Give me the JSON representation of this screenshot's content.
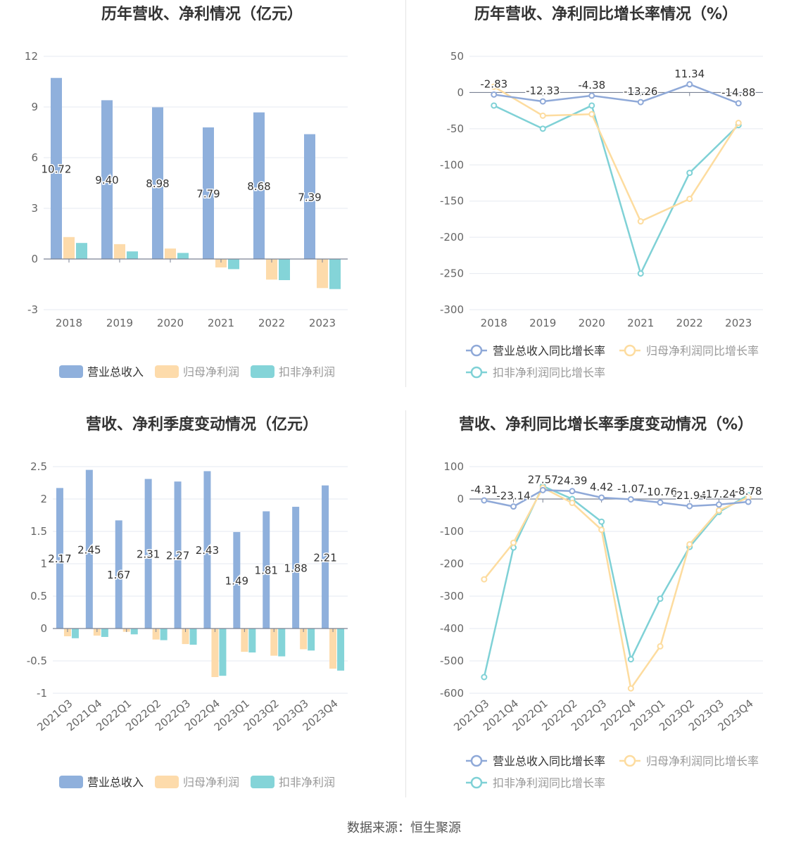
{
  "source": "数据来源：恒生聚源",
  "chart_data": [
    {
      "id": "annual-amount",
      "type": "bar",
      "title": "历年营收、净利情况（亿元）",
      "categories": [
        "2018",
        "2019",
        "2020",
        "2021",
        "2022",
        "2023"
      ],
      "ylim": [
        -3,
        12
      ],
      "yticks": [
        -3,
        0,
        3,
        6,
        9,
        12
      ],
      "series": [
        {
          "name": "营业总收入",
          "color": "#8fb0dc",
          "values": [
            10.72,
            9.4,
            8.98,
            7.79,
            8.68,
            7.39
          ],
          "labels": [
            "10.72",
            "9.40",
            "8.98",
            "7.79",
            "8.68",
            "7.39"
          ]
        },
        {
          "name": "归母净利润",
          "color": "#fddbab",
          "values": [
            1.3,
            0.88,
            0.62,
            -0.5,
            -1.22,
            -1.72
          ]
        },
        {
          "name": "扣非净利润",
          "color": "#84d4d8",
          "values": [
            0.95,
            0.45,
            0.36,
            -0.6,
            -1.25,
            -1.78
          ]
        }
      ],
      "legend": "bottom"
    },
    {
      "id": "annual-growth",
      "type": "line",
      "title": "历年营收、净利同比增长率情况（%）",
      "categories": [
        "2018",
        "2019",
        "2020",
        "2021",
        "2022",
        "2023"
      ],
      "ylim": [
        -300,
        50
      ],
      "yticks": [
        -300,
        -250,
        -200,
        -150,
        -100,
        -50,
        0,
        50
      ],
      "series": [
        {
          "name": "营业总收入同比增长率",
          "color": "#8fa9d8",
          "values": [
            -2.83,
            -12.33,
            -4.38,
            -13.26,
            11.34,
            -14.88
          ],
          "labels": [
            "-2.83",
            "-12.33",
            "-4.38",
            "-13.26",
            "11.34",
            "-14.88"
          ]
        },
        {
          "name": "归母净利润同比增长率",
          "color": "#fddc9f",
          "values": [
            8,
            -32,
            -30,
            -178,
            -147,
            -42
          ]
        },
        {
          "name": "扣非净利润同比增长率",
          "color": "#7fd1d6",
          "values": [
            -18,
            -50,
            -18,
            -250,
            -111,
            -45
          ]
        }
      ],
      "legend": "bottom"
    },
    {
      "id": "quarterly-amount",
      "type": "bar",
      "title": "营收、净利季度变动情况（亿元）",
      "categories": [
        "2021Q3",
        "2021Q4",
        "2022Q1",
        "2022Q2",
        "2022Q3",
        "2022Q4",
        "2023Q1",
        "2023Q2",
        "2023Q3",
        "2023Q4"
      ],
      "ylim": [
        -1,
        2.5
      ],
      "yticks": [
        -1,
        -0.5,
        0,
        0.5,
        1,
        1.5,
        2,
        2.5
      ],
      "series": [
        {
          "name": "营业总收入",
          "color": "#8fb0dc",
          "values": [
            2.17,
            2.45,
            1.67,
            2.31,
            2.27,
            2.43,
            1.49,
            1.81,
            1.88,
            2.21
          ],
          "labels": [
            "2.17",
            "2.45",
            "1.67",
            "2.31",
            "2.27",
            "2.43",
            "1.49",
            "1.81",
            "1.88",
            "2.21"
          ]
        },
        {
          "name": "归母净利润",
          "color": "#fddbab",
          "values": [
            -0.12,
            -0.11,
            -0.05,
            -0.17,
            -0.24,
            -0.75,
            -0.36,
            -0.42,
            -0.32,
            -0.62
          ]
        },
        {
          "name": "扣非净利润",
          "color": "#84d4d8",
          "values": [
            -0.15,
            -0.13,
            -0.09,
            -0.18,
            -0.25,
            -0.73,
            -0.37,
            -0.43,
            -0.34,
            -0.65
          ]
        }
      ],
      "legend": "bottom"
    },
    {
      "id": "quarterly-growth",
      "type": "line",
      "title": "营收、净利同比增长率季度变动情况（%）",
      "categories": [
        "2021Q3",
        "2021Q4",
        "2022Q1",
        "2022Q2",
        "2022Q3",
        "2022Q4",
        "2023Q1",
        "2023Q2",
        "2023Q3",
        "2023Q4"
      ],
      "ylim": [
        -600,
        100
      ],
      "yticks": [
        -600,
        -500,
        -400,
        -300,
        -200,
        -100,
        0,
        100
      ],
      "series": [
        {
          "name": "营业总收入同比增长率",
          "color": "#8fa9d8",
          "values": [
            -4.31,
            -23.14,
            27.57,
            24.39,
            4.42,
            -1.07,
            -10.76,
            -21.94,
            -17.24,
            -8.78
          ],
          "labels": [
            "-4.31",
            "-23.14",
            "27.57",
            "24.39",
            "4.42",
            "-1.07",
            "-10.76",
            "-21.94",
            "-17.24",
            "-8.78"
          ]
        },
        {
          "name": "归母净利润同比增长率",
          "color": "#fddc9f",
          "values": [
            -248,
            -135,
            35,
            -12,
            -95,
            -585,
            -455,
            -140,
            -35,
            5
          ]
        },
        {
          "name": "扣非净利润同比增长率",
          "color": "#7fd1d6",
          "values": [
            -550,
            -150,
            40,
            0,
            -70,
            -495,
            -308,
            -148,
            -40,
            12
          ]
        }
      ],
      "legend": "bottom"
    }
  ]
}
